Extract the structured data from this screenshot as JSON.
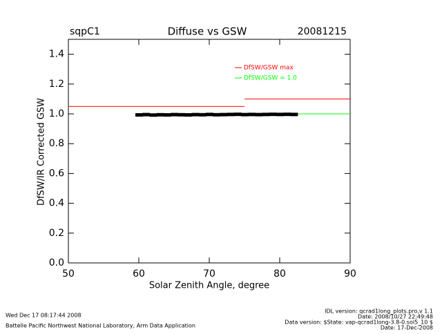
{
  "chart_data": {
    "type": "line",
    "title": "Diffuse vs GSW",
    "site_label": "sqpC1",
    "date_label": "20081215",
    "x_label": "Solar Zenith Angle, degree",
    "y_label": "DfSW/IR Corrected GSW",
    "xlim": [
      50,
      90
    ],
    "xticks": [
      50,
      60,
      70,
      80,
      90
    ],
    "ylim": [
      0,
      1.5
    ],
    "yticks": [
      {
        "value": 0,
        "label": "0.0"
      },
      0.2,
      0.4,
      0.6,
      0.8,
      {
        "value": 1,
        "label": "1.0"
      },
      1.2,
      1.4
    ],
    "series": [
      {
        "name": "DfSW/GSW max",
        "color": "#ff0000",
        "x": [
          50,
          75,
          75,
          75,
          90
        ],
        "values": [
          1.05,
          1.05,
          null,
          1.1,
          1.1
        ]
      },
      {
        "name": "DfSW/GSW = 1.0",
        "color": "#00ff00",
        "x": [
          82.5,
          90
        ],
        "values": [
          1,
          1
        ]
      },
      {
        "color": "#000000",
        "style": "points",
        "x": [
          60,
          61,
          62,
          63,
          64,
          65,
          66,
          67,
          68,
          69,
          70,
          71,
          72,
          73,
          74,
          75,
          76,
          77,
          78,
          79,
          80,
          81,
          82
        ],
        "values": [
          0.993,
          0.995,
          0.992,
          0.994,
          0.993,
          0.995,
          0.994,
          0.993,
          0.995,
          0.994,
          0.996,
          0.994,
          0.995,
          0.996,
          0.997,
          0.995,
          0.996,
          0.995,
          0.996,
          0.997,
          0.996,
          0.997,
          0.996
        ]
      }
    ],
    "footer": {
      "timestamp": "Wed Dec 17 08:17:44 2008",
      "credit": "Battelle Pacific Northwest National Laboratory, Arm Data Application",
      "lines": [
        "IDL version: qcrad1long_plots.pro,v 1.1",
        "Date: 2008/10/27 22:49:48",
        "Data version: $State: vap-qcrad1long-3.8-0.sol5_10 $",
        "Date: 17-Dec-2008"
      ]
    }
  }
}
